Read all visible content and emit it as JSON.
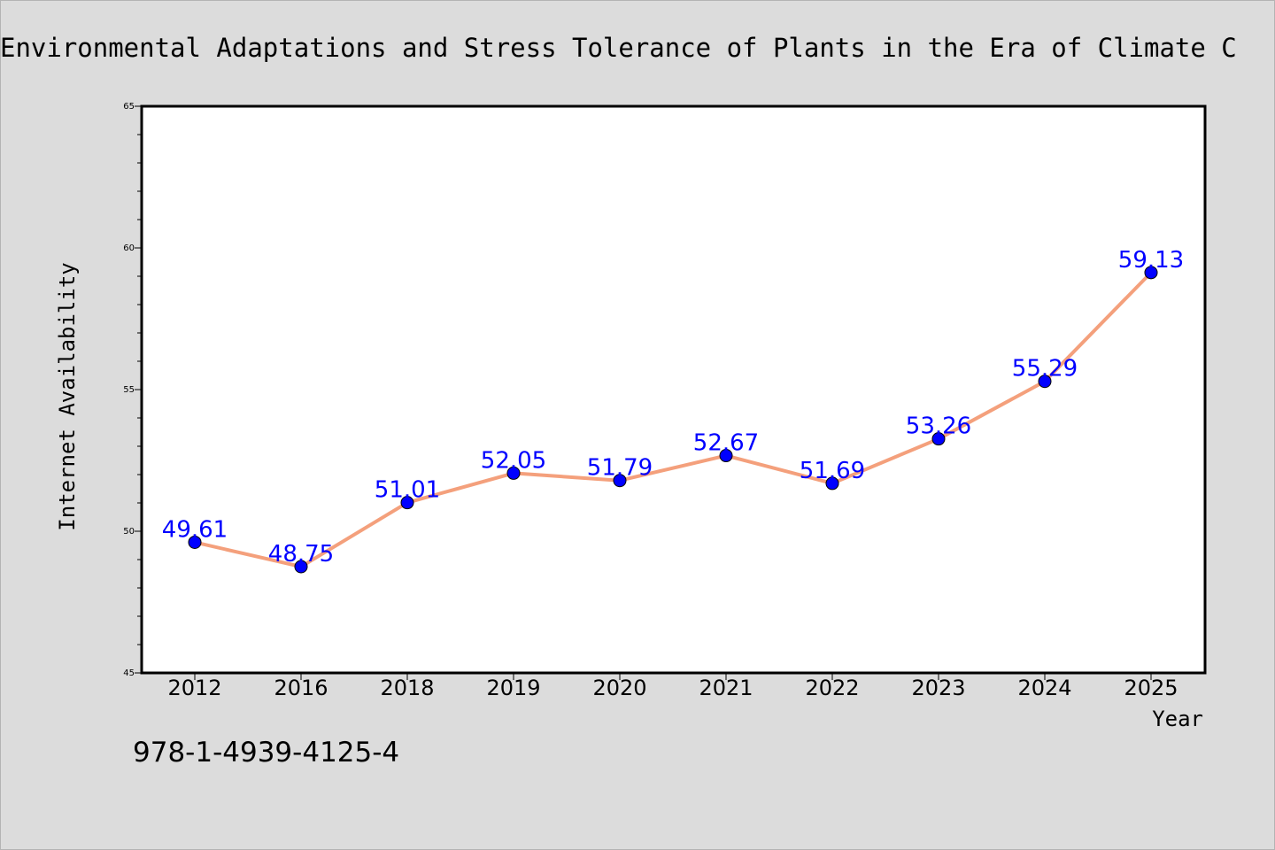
{
  "chart_data": {
    "type": "line",
    "title": "Environmental Adaptations and Stress Tolerance of Plants in the Era of Climate C",
    "xlabel": "Year",
    "ylabel": "Internet Availability",
    "categories": [
      "2012",
      "2016",
      "2018",
      "2019",
      "2020",
      "2021",
      "2022",
      "2023",
      "2024",
      "2025"
    ],
    "series": [
      {
        "values": [
          49.61,
          48.75,
          51.01,
          52.05,
          51.79,
          52.67,
          51.69,
          53.26,
          55.29,
          59.13
        ],
        "labels": [
          "49.61",
          "48.75",
          "51.01",
          "52.05",
          "51.79",
          "52.67",
          "51.69",
          "53.26",
          "55.29",
          "59.13"
        ]
      }
    ],
    "ylim": [
      45,
      65
    ],
    "yticks": [
      45,
      50,
      55,
      60,
      65
    ],
    "ytick_labels": [
      "45",
      "50",
      "55",
      "60",
      "65"
    ],
    "grid": false,
    "colors": {
      "line": "#f4a07c",
      "marker": "#0000ff",
      "data_label": "#0000ff",
      "background": "#dcdcdc",
      "plot_background": "#ffffff"
    }
  },
  "footer": {
    "isbn": "978-1-4939-4125-4"
  }
}
